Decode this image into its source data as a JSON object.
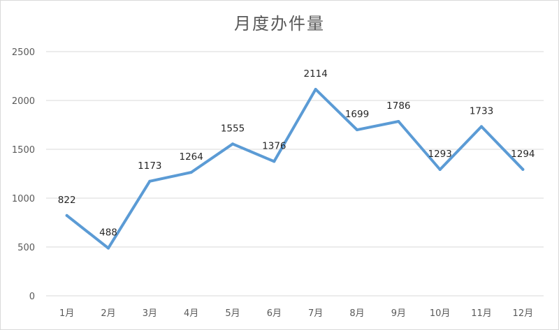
{
  "chart_data": {
    "type": "line",
    "title": "月度办件量",
    "categories": [
      "1月",
      "2月",
      "3月",
      "4月",
      "5月",
      "6月",
      "7月",
      "8月",
      "9月",
      "10月",
      "11月",
      "12月"
    ],
    "values": [
      822,
      488,
      1173,
      1264,
      1555,
      1376,
      2114,
      1699,
      1786,
      1293,
      1733,
      1294
    ],
    "ylim": [
      0,
      2500
    ],
    "yticks": [
      0,
      500,
      1000,
      1500,
      2000,
      2500
    ],
    "grid": true,
    "legend": "none",
    "line_color": "#5b9bd5",
    "grid_color": "#d9d9d9",
    "text_color": "#595959"
  }
}
